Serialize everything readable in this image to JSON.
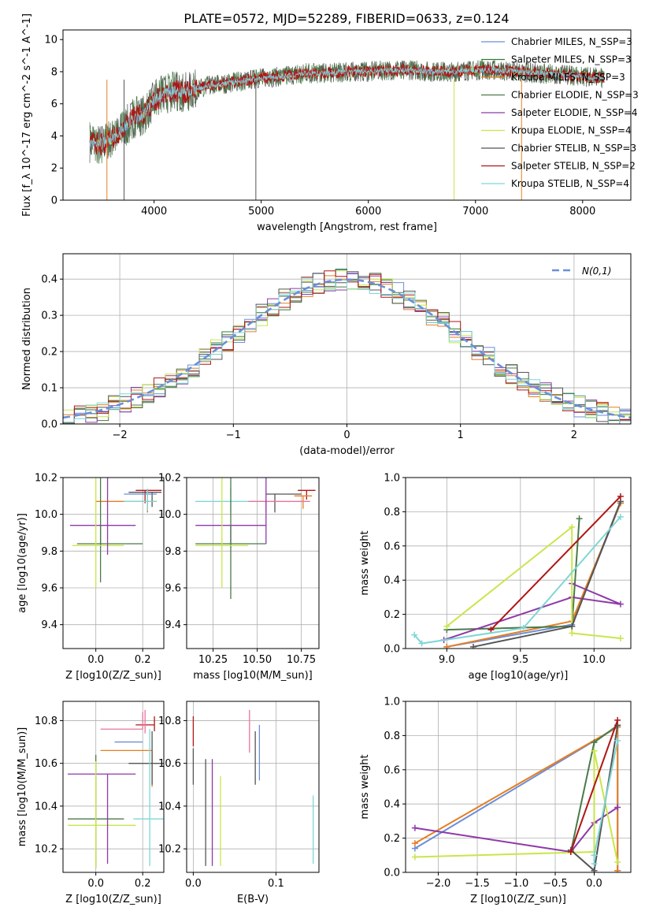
{
  "figure_title": "PLATE=0572, MJD=52289, FIBERID=0633, z=0.124",
  "chart_data": [
    {
      "id": "spectrum",
      "type": "line",
      "xlabel": "wavelength [Angstrom, rest frame]",
      "ylabel": "Flux [f_λ 10^-17 erg cm^-2 s^-1 A^-1]",
      "xlim": [
        3150,
        8450
      ],
      "ylim": [
        0,
        10.6
      ],
      "xticks": [
        4000,
        5000,
        6000,
        7000,
        8000
      ],
      "yticks": [
        0,
        2,
        4,
        6,
        8,
        10
      ],
      "grid": false,
      "legend_position": "top-right",
      "spectrum_envelope": {
        "x": [
          3400,
          3500,
          3600,
          3700,
          3800,
          3900,
          4000,
          4100,
          4200,
          4300,
          4400,
          4500,
          4600,
          4700,
          4800,
          4900,
          5000,
          5200,
          5400,
          5600,
          5800,
          6000,
          6200,
          6400,
          6600,
          6800,
          7000,
          7200,
          7400,
          7600,
          7800,
          8000,
          8200
        ],
        "y": [
          3.6,
          3.5,
          3.8,
          4.3,
          5.1,
          5.3,
          6.2,
          6.6,
          6.8,
          6.7,
          6.9,
          7.1,
          7.2,
          7.3,
          7.4,
          7.5,
          7.6,
          7.7,
          7.9,
          7.9,
          8.0,
          8.0,
          8.1,
          8.1,
          8.0,
          8.0,
          8.1,
          8.1,
          8.0,
          7.9,
          7.8,
          7.7,
          7.6
        ]
      },
      "series": [
        {
          "name": "Chabrier MILES, N_SSP=3",
          "color": "#6a8fd8"
        },
        {
          "name": "Salpeter MILES, N_SSP=3",
          "color": "#2e7d32"
        },
        {
          "name": "Kroupa MILES, N_SSP=3",
          "color": "#e67e22"
        },
        {
          "name": "Chabrier ELODIE, N_SSP=3",
          "color": "#4a7a4a"
        },
        {
          "name": "Salpeter ELODIE, N_SSP=4",
          "color": "#8e3aa8"
        },
        {
          "name": "Kroupa ELODIE, N_SSP=4",
          "color": "#c8e64a"
        },
        {
          "name": "Chabrier STELIB, N_SSP=3",
          "color": "#555555"
        },
        {
          "name": "Salpeter STELIB, N_SSP=2",
          "color": "#b01515"
        },
        {
          "name": "Kroupa STELIB, N_SSP=4",
          "color": "#7fd6d6"
        }
      ]
    },
    {
      "id": "residuals",
      "type": "line",
      "xlabel": "(data-model)/error",
      "ylabel": "Normed distribution",
      "xlim": [
        -2.5,
        2.5
      ],
      "ylim": [
        0,
        0.47
      ],
      "xticks": [
        -2,
        -1,
        0,
        1,
        2
      ],
      "yticks": [
        0.0,
        0.1,
        0.2,
        0.3,
        0.4
      ],
      "grid": true,
      "legend_position": "top-right",
      "legend": "N(0,1)",
      "gaussian": {
        "mean": 0,
        "sigma": 1,
        "color": "#6a8fd8"
      }
    },
    {
      "id": "age-vs-Z",
      "type": "scatter",
      "xlabel": "Z [log10(Z/Z_sun)]",
      "ylabel": "age [log10(age/yr)]",
      "xlim": [
        -0.14,
        0.29
      ],
      "ylim": [
        9.27,
        10.2
      ],
      "xticks": [
        0.0,
        0.2
      ],
      "yticks": [
        9.4,
        9.6,
        9.8,
        10.0,
        10.2
      ],
      "grid": true,
      "points": [
        {
          "x": 0.21,
          "y": 10.13,
          "xerr": [
            0.04,
            0.07
          ],
          "yerr": [
            0.07,
            0.0
          ],
          "color": "#b01515"
        },
        {
          "x": 0.24,
          "y": 10.12,
          "xerr": [
            0.1,
            0.04
          ],
          "yerr": [
            0.08,
            0.0
          ],
          "color": "#555555"
        },
        {
          "x": 0.22,
          "y": 10.11,
          "xerr": [
            0.1,
            0.04
          ],
          "yerr": [
            0.1,
            0.0
          ],
          "color": "#6a8fd8"
        },
        {
          "x": 0.22,
          "y": 10.07,
          "xerr": [
            0.22,
            0.04
          ],
          "yerr": [
            0.06,
            0.0
          ],
          "color": "#e67e22"
        },
        {
          "x": 0.22,
          "y": 10.07,
          "xerr": [
            0.1,
            0.04
          ],
          "yerr": [
            0.05,
            0.07
          ],
          "color": "#7fd6d6"
        },
        {
          "x": 0.02,
          "y": 9.94,
          "xerr": [
            0.13,
            0.15
          ],
          "yerr": [
            0.12,
            0.0
          ],
          "color": "#8e3aa8"
        },
        {
          "x": 0.02,
          "y": 9.84,
          "xerr": [
            0.1,
            0.18
          ],
          "yerr": [
            0.21,
            0.42
          ],
          "color": "#4a7a4a"
        },
        {
          "x": 0.0,
          "y": 9.83,
          "xerr": [
            0.1,
            0.12
          ],
          "yerr": [
            0.23,
            0.5
          ],
          "color": "#c8e64a"
        },
        {
          "x": 0.05,
          "y": 9.94,
          "xerr": [
            0.0,
            0.0
          ],
          "yerr": [
            0.16,
            0.63
          ],
          "color": "#8e3aa8"
        }
      ]
    },
    {
      "id": "age-vs-mass",
      "type": "scatter",
      "xlabel": "mass [log10(M/M_sun)]",
      "ylabel": "",
      "xlim": [
        10.1,
        10.85
      ],
      "ylim": [
        9.27,
        10.2
      ],
      "xticks": [
        10.25,
        10.5,
        10.75
      ],
      "yticks": [
        9.4,
        9.6,
        9.8,
        10.0,
        10.2
      ],
      "grid": true,
      "points": [
        {
          "x": 10.78,
          "y": 10.13,
          "xerr": [
            0.05,
            0.05
          ],
          "yerr": [
            0.05,
            0.0
          ],
          "color": "#b01515"
        },
        {
          "x": 10.6,
          "y": 10.11,
          "xerr": [
            0.05,
            0.15
          ],
          "yerr": [
            0.1,
            0.0
          ],
          "color": "#555555"
        },
        {
          "x": 10.76,
          "y": 10.1,
          "xerr": [
            0.05,
            0.05
          ],
          "yerr": [
            0.07,
            0.0
          ],
          "color": "#e67e22"
        },
        {
          "x": 10.35,
          "y": 10.07,
          "xerr": [
            0.2,
            0.2
          ],
          "yerr": [
            0.06,
            0.07
          ],
          "color": "#7fd6d6"
        },
        {
          "x": 10.55,
          "y": 10.07,
          "xerr": [
            0.1,
            0.25
          ],
          "yerr": [
            0.06,
            0.0
          ],
          "color": "#e8749a"
        },
        {
          "x": 10.35,
          "y": 9.94,
          "xerr": [
            0.2,
            0.2
          ],
          "yerr": [
            0.12,
            0.0
          ],
          "color": "#8e3aa8"
        },
        {
          "x": 10.35,
          "y": 9.84,
          "xerr": [
            0.2,
            0.2
          ],
          "yerr": [
            0.3,
            0.42
          ],
          "color": "#4a7a4a"
        },
        {
          "x": 10.3,
          "y": 9.83,
          "xerr": [
            0.15,
            0.15
          ],
          "yerr": [
            0.23,
            0.5
          ],
          "color": "#c8e64a"
        },
        {
          "x": 10.55,
          "y": 9.94,
          "xerr": [
            0.0,
            0.0
          ],
          "yerr": [
            0.1,
            0.6
          ],
          "color": "#8e3aa8"
        }
      ]
    },
    {
      "id": "weight-vs-age",
      "type": "line",
      "xlabel": "age [log10(age/yr)]",
      "ylabel": "mass weight",
      "xlim": [
        8.72,
        10.25
      ],
      "ylim": [
        0,
        1.0
      ],
      "xticks": [
        9.0,
        9.5,
        10.0
      ],
      "yticks": [
        0.0,
        0.2,
        0.4,
        0.6,
        0.8,
        1.0
      ],
      "grid": true,
      "series": [
        {
          "color": "#6a8fd8",
          "x": [
            9.0,
            9.85,
            10.18
          ],
          "y": [
            0.01,
            0.14,
            0.85
          ]
        },
        {
          "color": "#e67e22",
          "x": [
            9.0,
            9.85,
            10.18
          ],
          "y": [
            0.01,
            0.16,
            0.85
          ]
        },
        {
          "color": "#4a7a4a",
          "x": [
            9.0,
            9.85,
            9.9
          ],
          "y": [
            0.11,
            0.13,
            0.76
          ]
        },
        {
          "color": "#8e3aa8",
          "x": [
            8.98,
            9.85,
            10.18,
            9.85
          ],
          "y": [
            0.05,
            0.3,
            0.26,
            0.38
          ]
        },
        {
          "color": "#c8e64a",
          "x": [
            9.0,
            9.85,
            9.85,
            10.18
          ],
          "y": [
            0.13,
            0.71,
            0.09,
            0.06
          ]
        },
        {
          "color": "#555555",
          "x": [
            9.18,
            9.85,
            10.18
          ],
          "y": [
            0.01,
            0.13,
            0.86
          ]
        },
        {
          "color": "#b01515",
          "x": [
            9.3,
            10.18
          ],
          "y": [
            0.11,
            0.89
          ]
        },
        {
          "color": "#7fd6d6",
          "x": [
            8.78,
            8.83,
            9.52,
            10.18
          ],
          "y": [
            0.08,
            0.03,
            0.12,
            0.77
          ]
        }
      ]
    },
    {
      "id": "mass-vs-Z",
      "type": "scatter",
      "xlabel": "Z [log10(Z/Z_sun)]",
      "ylabel": "mass [log10(M/M_sun)]",
      "xlim": [
        -0.14,
        0.29
      ],
      "ylim": [
        10.09,
        10.89
      ],
      "xticks": [
        0.0,
        0.2
      ],
      "yticks": [
        10.2,
        10.4,
        10.6,
        10.8
      ],
      "grid": true,
      "points": [
        {
          "x": 0.25,
          "y": 10.78,
          "xerr": [
            0.08,
            0.0
          ],
          "yerr": [
            0.03,
            0.04
          ],
          "color": "#b01515"
        },
        {
          "x": 0.2,
          "y": 10.76,
          "xerr": [
            0.18,
            0.0
          ],
          "yerr": [
            0.0,
            0.08
          ],
          "color": "#e8749a"
        },
        {
          "x": 0.2,
          "y": 10.7,
          "xerr": [
            0.12,
            0.0
          ],
          "yerr": [
            0.0,
            0.0
          ],
          "color": "#6a8fd8"
        },
        {
          "x": 0.24,
          "y": 10.66,
          "xerr": [
            0.22,
            0.0
          ],
          "yerr": [
            0.17,
            0.0
          ],
          "color": "#e67e22"
        },
        {
          "x": 0.24,
          "y": 10.6,
          "xerr": [
            0.1,
            0.05
          ],
          "yerr": [
            0.1,
            0.15
          ],
          "color": "#555555"
        },
        {
          "x": 0.0,
          "y": 10.55,
          "xerr": [
            0.12,
            0.17
          ],
          "yerr": [
            0.0,
            0.0
          ],
          "color": "#8e3aa8"
        },
        {
          "x": 0.23,
          "y": 10.34,
          "xerr": [
            0.07,
            0.07
          ],
          "yerr": [
            0.22,
            0.42
          ],
          "color": "#7fd6d6"
        },
        {
          "x": 0.0,
          "y": 10.34,
          "xerr": [
            0.12,
            0.12
          ],
          "yerr": [
            0.23,
            0.3
          ],
          "color": "#4a7a4a"
        },
        {
          "x": 0.0,
          "y": 10.31,
          "xerr": [
            0.12,
            0.17
          ],
          "yerr": [
            0.2,
            0.3
          ],
          "color": "#c8e64a"
        },
        {
          "x": 0.05,
          "y": 10.55,
          "xerr": [
            0.0,
            0.0
          ],
          "yerr": [
            0.42,
            0.0
          ],
          "color": "#8e3aa8"
        },
        {
          "x": 0.21,
          "y": 10.74,
          "xerr": [
            0.0,
            0.0
          ],
          "yerr": [
            0.0,
            0.11
          ],
          "color": "#e8749a"
        }
      ]
    },
    {
      "id": "mass-vs-EBV",
      "type": "scatter",
      "xlabel": "E(B-V)",
      "ylabel": "",
      "xlim": [
        -0.008,
        0.152
      ],
      "ylim": [
        10.09,
        10.89
      ],
      "xticks": [
        0.0,
        0.1
      ],
      "yticks": [
        10.2,
        10.4,
        10.6,
        10.8
      ],
      "grid": true,
      "points": [
        {
          "x": 0.0,
          "y": 10.75,
          "xerr": [
            0.0,
            0.0
          ],
          "yerr": [
            0.07,
            0.07
          ],
          "color": "#b01515"
        },
        {
          "x": 0.0,
          "y": 10.58,
          "xerr": [
            0.0,
            0.0
          ],
          "yerr": [
            0.08,
            0.09
          ],
          "color": "#555555"
        },
        {
          "x": 0.015,
          "y": 10.38,
          "xerr": [
            0.0,
            0.0
          ],
          "yerr": [
            0.26,
            0.24
          ],
          "color": "#555555"
        },
        {
          "x": 0.023,
          "y": 10.38,
          "xerr": [
            0.0,
            0.0
          ],
          "yerr": [
            0.26,
            0.24
          ],
          "color": "#8e3aa8"
        },
        {
          "x": 0.033,
          "y": 10.33,
          "xerr": [
            0.0,
            0.0
          ],
          "yerr": [
            0.21,
            0.21
          ],
          "color": "#c8e64a"
        },
        {
          "x": 0.068,
          "y": 10.75,
          "xerr": [
            0.0,
            0.0
          ],
          "yerr": [
            0.1,
            0.1
          ],
          "color": "#e8749a"
        },
        {
          "x": 0.075,
          "y": 10.63,
          "xerr": [
            0.0,
            0.0
          ],
          "yerr": [
            0.13,
            0.12
          ],
          "color": "#555555"
        },
        {
          "x": 0.08,
          "y": 10.66,
          "xerr": [
            0.0,
            0.0
          ],
          "yerr": [
            0.14,
            0.12
          ],
          "color": "#6a8fd8"
        },
        {
          "x": 0.145,
          "y": 10.29,
          "xerr": [
            0.0,
            0.0
          ],
          "yerr": [
            0.16,
            0.16
          ],
          "color": "#7fd6d6"
        }
      ]
    },
    {
      "id": "weight-vs-Z",
      "type": "line",
      "xlabel": "Z [log10(Z/Z_sun)]",
      "ylabel": "mass weight",
      "xlim": [
        -2.42,
        0.47
      ],
      "ylim": [
        0,
        1.0
      ],
      "xticks": [
        -2.0,
        -1.5,
        -1.0,
        -0.5,
        0.0
      ],
      "yticks": [
        0.0,
        0.2,
        0.4,
        0.6,
        0.8,
        1.0
      ],
      "grid": true,
      "series": [
        {
          "color": "#6a8fd8",
          "x": [
            -2.3,
            0.3,
            0.3
          ],
          "y": [
            0.14,
            0.85,
            0.01
          ]
        },
        {
          "color": "#e67e22",
          "x": [
            -2.3,
            0.3,
            0.3
          ],
          "y": [
            0.17,
            0.85,
            0.01
          ]
        },
        {
          "color": "#4a7a4a",
          "x": [
            -0.3,
            0.0,
            0.3
          ],
          "y": [
            0.12,
            0.76,
            0.86
          ]
        },
        {
          "color": "#8e3aa8",
          "x": [
            -2.3,
            -0.3,
            0.0,
            0.3
          ],
          "y": [
            0.26,
            0.12,
            0.29,
            0.38
          ]
        },
        {
          "color": "#c8e64a",
          "x": [
            -2.3,
            0.0,
            0.0,
            0.3
          ],
          "y": [
            0.09,
            0.12,
            0.71,
            0.06
          ]
        },
        {
          "color": "#555555",
          "x": [
            -0.3,
            0.0,
            0.3
          ],
          "y": [
            0.13,
            0.01,
            0.86
          ]
        },
        {
          "color": "#b01515",
          "x": [
            -0.3,
            0.3
          ],
          "y": [
            0.12,
            0.89
          ]
        },
        {
          "color": "#7fd6d6",
          "x": [
            0.0,
            0.0,
            0.3
          ],
          "y": [
            0.05,
            0.1,
            0.77
          ]
        }
      ]
    }
  ]
}
